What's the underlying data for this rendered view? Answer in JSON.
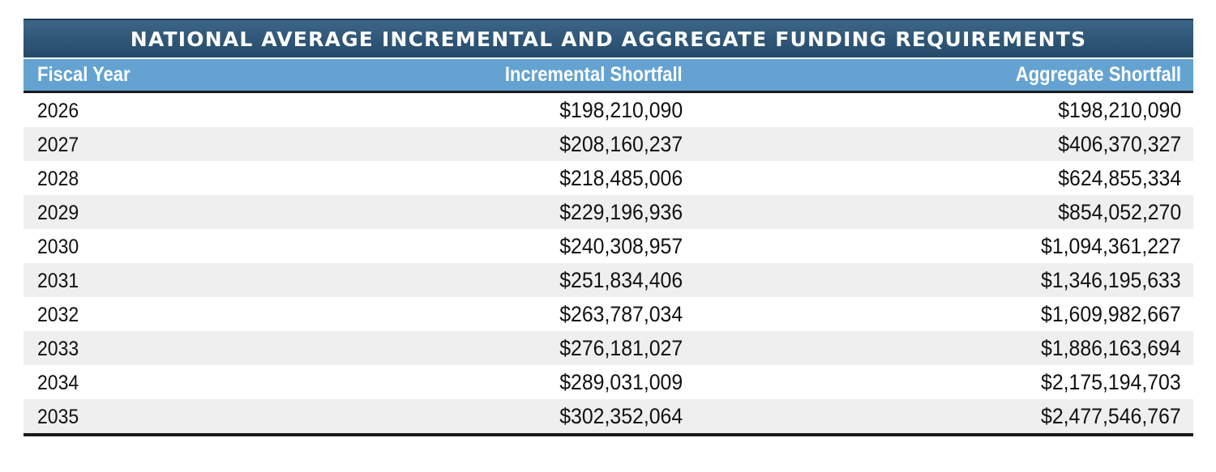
{
  "table": {
    "title": "NATIONAL AVERAGE INCREMENTAL AND AGGREGATE FUNDING REQUIREMENTS",
    "headers": {
      "fiscal_year": "Fiscal Year",
      "incremental": "Incremental Shortfall",
      "aggregate": "Aggregate Shortfall"
    },
    "rows": [
      {
        "year": "2026",
        "incremental": "$198,210,090",
        "aggregate": "$198,210,090"
      },
      {
        "year": "2027",
        "incremental": "$208,160,237",
        "aggregate": "$406,370,327"
      },
      {
        "year": "2028",
        "incremental": "$218,485,006",
        "aggregate": "$624,855,334"
      },
      {
        "year": "2029",
        "incremental": "$229,196,936",
        "aggregate": "$854,052,270"
      },
      {
        "year": "2030",
        "incremental": "$240,308,957",
        "aggregate": "$1,094,361,227"
      },
      {
        "year": "2031",
        "incremental": "$251,834,406",
        "aggregate": "$1,346,195,633"
      },
      {
        "year": "2032",
        "incremental": "$263,787,034",
        "aggregate": "$1,609,982,667"
      },
      {
        "year": "2033",
        "incremental": "$276,181,027",
        "aggregate": "$1,886,163,694"
      },
      {
        "year": "2034",
        "incremental": "$289,031,009",
        "aggregate": "$2,175,194,703"
      },
      {
        "year": "2035",
        "incremental": "$302,352,064",
        "aggregate": "$2,477,546,767"
      }
    ],
    "colors": {
      "title_bg": "#2f5677",
      "header_bg": "#64a3d1",
      "alt_row_bg": "#efefef",
      "rule": "#1a1a1a"
    }
  }
}
